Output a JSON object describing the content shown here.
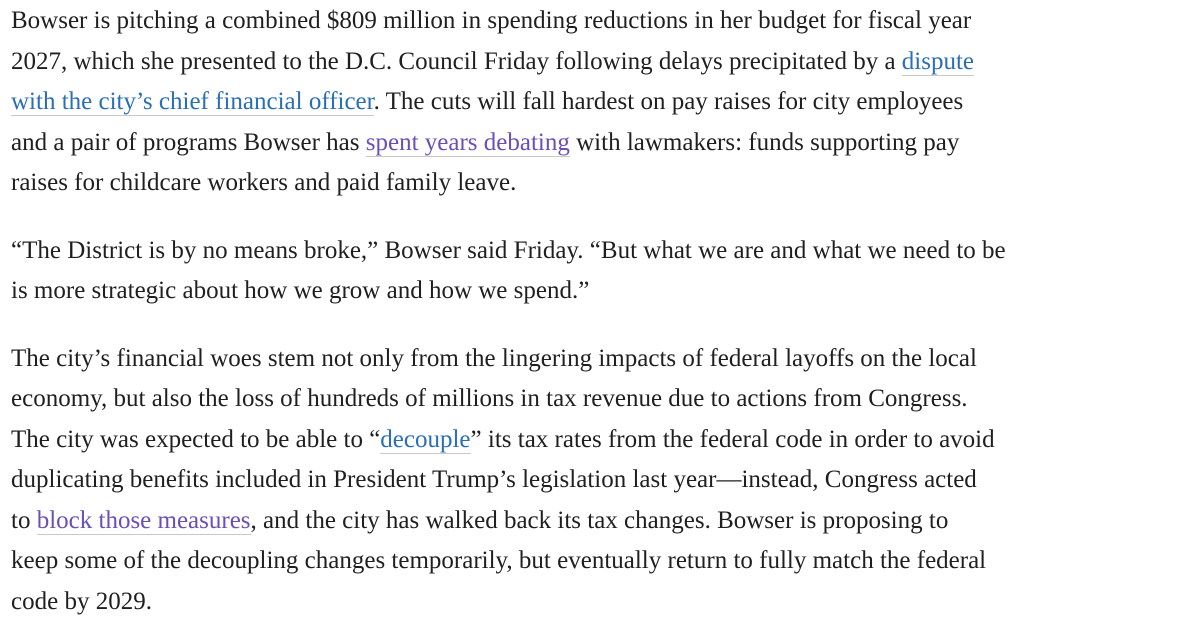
{
  "article": {
    "p1": {
      "l1": "Bowser is pitching a combined $809 million in spending reductions in her budget for fiscal year",
      "l2": "2027, which she presented to the D.C. Council Friday following delays precipitated by a ",
      "link_dispute_a": "dispute",
      "link_dispute_b": "with the city’s chief financial officer",
      "l3_after": ". The cuts will fall hardest on pay raises for city employees",
      "l4_before": "and a pair of programs Bowser has ",
      "link_spent": "spent years debating",
      "l4_after": " with lawmakers: funds supporting pay",
      "l5": "raises for childcare workers and paid family leave."
    },
    "p2": {
      "l1": "“The District is by no means broke,” Bowser said Friday. “But what we are and what we need to be",
      "l2": "is more strategic about how we grow and how we spend.”"
    },
    "p3": {
      "l1": "The city’s financial woes stem not only from the lingering impacts of federal layoffs on the local",
      "l2": "economy, but also the loss of hundreds of millions in tax revenue due to actions from Congress.",
      "l3_before": "The city was expected to be able to “",
      "link_decouple": "decouple",
      "l3_after": "” its tax rates from the federal code in order to avoid",
      "l4": "duplicating benefits included in President Trump’s legislation last year—instead, Congress acted",
      "l5_before": "to ",
      "link_block": "block those measures",
      "l5_after": ", and the city has walked back its tax changes. Bowser is proposing to",
      "l6": "keep some of the decoupling changes temporarily, but eventually return to fully match the federal",
      "l7": "code by 2029."
    }
  },
  "colors": {
    "text": "#1f1f1f",
    "link_blue": "#2a6fb6",
    "link_purple": "#6a4fb8",
    "underline": "#c9c9c9",
    "background": "#ffffff"
  }
}
